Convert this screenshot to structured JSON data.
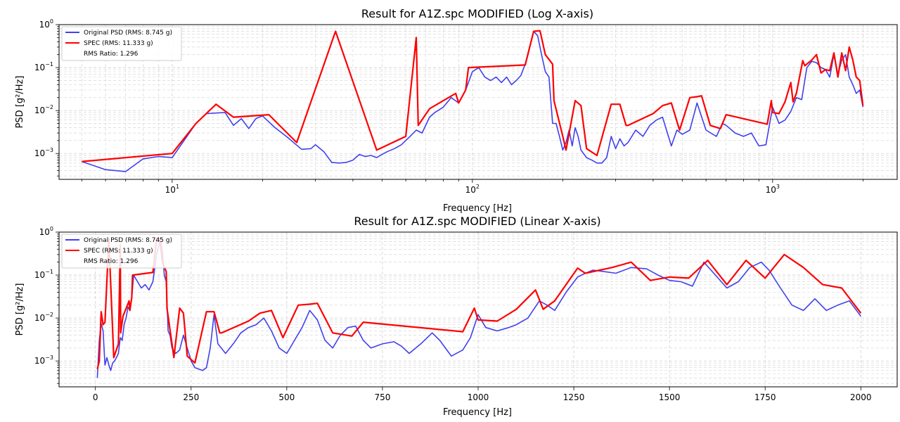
{
  "colors": {
    "original": "#4040ee",
    "spec": "#ff0000",
    "grid": "#d0d0d0",
    "axis": "#000000"
  },
  "chart_data": [
    {
      "type": "line",
      "title": "Result for A1Z.spc MODIFIED (Log X-axis)",
      "xlabel": "Frequency [Hz]",
      "ylabel": "PSD [g²/Hz]",
      "xscale": "log",
      "yscale": "log",
      "xlim": [
        4.2,
        2600
      ],
      "ylim": [
        0.00025,
        1.0
      ],
      "xticks": [
        {
          "value": 10,
          "base": "10",
          "exp": "1"
        },
        {
          "value": 100,
          "base": "10",
          "exp": "2"
        },
        {
          "value": 1000,
          "base": "10",
          "exp": "3"
        }
      ],
      "yticks": [
        {
          "value": 0.001,
          "base": "10",
          "exp": "−3"
        },
        {
          "value": 0.01,
          "base": "10",
          "exp": "−2"
        },
        {
          "value": 0.1,
          "base": "10",
          "exp": "−1"
        },
        {
          "value": 1,
          "base": "10",
          "exp": "0"
        }
      ],
      "grid": true,
      "legend_position": "top-left",
      "legend": [
        "Original PSD (RMS: 8.745 g)",
        "SPEC (RMS: 11.333 g)",
        "RMS Ratio: 1.296"
      ],
      "series": [
        {
          "name": "Original PSD (RMS: 8.745 g)",
          "x": [
            5,
            6,
            7,
            8,
            9,
            10,
            12,
            13,
            15,
            16,
            17,
            18,
            19,
            20,
            22,
            24,
            27,
            29,
            30,
            32,
            34,
            36,
            38,
            40,
            42,
            44,
            46,
            48,
            50,
            52,
            55,
            58,
            62,
            65,
            68,
            72,
            75,
            80,
            85,
            90,
            95,
            100,
            105,
            110,
            115,
            120,
            125,
            130,
            135,
            140,
            145,
            150,
            155,
            160,
            165,
            170,
            175,
            180,
            185,
            190,
            195,
            200,
            205,
            210,
            215,
            220,
            225,
            230,
            240,
            250,
            260,
            270,
            280,
            290,
            300,
            310,
            320,
            330,
            350,
            370,
            390,
            410,
            430,
            460,
            480,
            500,
            530,
            560,
            600,
            650,
            680,
            700,
            750,
            800,
            850,
            900,
            950,
            1000,
            1050,
            1100,
            1150,
            1200,
            1250,
            1300,
            1350,
            1400,
            1450,
            1500,
            1550,
            1600,
            1650,
            1700,
            1750,
            1800,
            1850,
            1900,
            1950,
            2000
          ],
          "y": [
            0.00065,
            0.00042,
            0.00038,
            0.00075,
            0.00085,
            0.0008,
            0.005,
            0.0085,
            0.009,
            0.0045,
            0.0065,
            0.0038,
            0.0065,
            0.0075,
            0.004,
            0.0025,
            0.00125,
            0.0013,
            0.0016,
            0.0011,
            0.00062,
            0.0006,
            0.00062,
            0.0007,
            0.00095,
            0.00085,
            0.0009,
            0.0008,
            0.00095,
            0.0011,
            0.0013,
            0.0016,
            0.0025,
            0.0035,
            0.003,
            0.007,
            0.009,
            0.012,
            0.02,
            0.015,
            0.03,
            0.08,
            0.1,
            0.06,
            0.05,
            0.06,
            0.045,
            0.06,
            0.04,
            0.05,
            0.065,
            0.12,
            0.3,
            0.7,
            0.55,
            0.2,
            0.08,
            0.06,
            0.005,
            0.005,
            0.0025,
            0.0012,
            0.0018,
            0.0035,
            0.0015,
            0.004,
            0.0025,
            0.0012,
            0.0008,
            0.0007,
            0.0006,
            0.0006,
            0.0008,
            0.0025,
            0.0013,
            0.0022,
            0.0015,
            0.0018,
            0.0035,
            0.0025,
            0.0045,
            0.006,
            0.007,
            0.0015,
            0.0035,
            0.0028,
            0.0035,
            0.015,
            0.0035,
            0.0025,
            0.005,
            0.0045,
            0.003,
            0.0025,
            0.003,
            0.0015,
            0.0016,
            0.012,
            0.005,
            0.006,
            0.0095,
            0.02,
            0.018,
            0.1,
            0.14,
            0.13,
            0.1,
            0.09,
            0.06,
            0.2,
            0.07,
            0.15,
            0.2,
            0.06,
            0.04,
            0.025,
            0.03,
            0.012
          ]
        },
        {
          "name": "SPEC (RMS: 11.333 g)",
          "x": [
            5,
            10,
            12,
            14,
            16,
            21,
            26,
            35,
            48,
            60,
            65,
            66,
            72,
            88,
            90,
            95,
            97,
            150,
            160,
            168,
            175,
            185,
            187,
            200,
            205,
            220,
            230,
            240,
            260,
            290,
            310,
            325,
            330,
            400,
            430,
            460,
            490,
            530,
            560,
            580,
            620,
            670,
            700,
            960,
            990,
            1000,
            1050,
            1100,
            1150,
            1170,
            1200,
            1260,
            1280,
            1350,
            1400,
            1450,
            1500,
            1550,
            1600,
            1650,
            1700,
            1750,
            1800,
            1850,
            1900,
            1950,
            2000
          ],
          "y": [
            0.00065,
            0.001,
            0.005,
            0.014,
            0.007,
            0.008,
            0.0018,
            0.7,
            0.0012,
            0.0025,
            0.5,
            0.0045,
            0.011,
            0.025,
            0.015,
            0.03,
            0.1,
            0.115,
            0.7,
            0.72,
            0.2,
            0.12,
            0.017,
            0.0025,
            0.0012,
            0.017,
            0.013,
            0.0013,
            0.0009,
            0.014,
            0.014,
            0.0045,
            0.0045,
            0.0085,
            0.013,
            0.015,
            0.0035,
            0.02,
            0.021,
            0.022,
            0.0045,
            0.0038,
            0.008,
            0.0048,
            0.017,
            0.009,
            0.0085,
            0.016,
            0.045,
            0.016,
            0.025,
            0.145,
            0.11,
            0.15,
            0.2,
            0.075,
            0.09,
            0.085,
            0.22,
            0.06,
            0.22,
            0.085,
            0.3,
            0.15,
            0.06,
            0.05,
            0.013
          ]
        }
      ]
    },
    {
      "type": "line",
      "title": "Result for A1Z.spc MODIFIED (Linear X-axis)",
      "xlabel": "Frequency [Hz]",
      "ylabel": "PSD [g²/Hz]",
      "xscale": "linear",
      "yscale": "log",
      "xlim": [
        -95,
        2095
      ],
      "ylim": [
        0.00025,
        1.0
      ],
      "xticks": [
        {
          "value": 0,
          "label": "0"
        },
        {
          "value": 250,
          "label": "250"
        },
        {
          "value": 500,
          "label": "500"
        },
        {
          "value": 750,
          "label": "750"
        },
        {
          "value": 1000,
          "label": "1000"
        },
        {
          "value": 1250,
          "label": "1250"
        },
        {
          "value": 1500,
          "label": "1500"
        },
        {
          "value": 1750,
          "label": "1750"
        },
        {
          "value": 2000,
          "label": "2000"
        }
      ],
      "yticks": [
        {
          "value": 0.001,
          "base": "10",
          "exp": "−3"
        },
        {
          "value": 0.01,
          "base": "10",
          "exp": "−2"
        },
        {
          "value": 0.1,
          "base": "10",
          "exp": "−1"
        },
        {
          "value": 1,
          "base": "10",
          "exp": "0"
        }
      ],
      "grid": true,
      "legend_position": "top-left",
      "legend": [
        "Original PSD (RMS: 8.745 g)",
        "SPEC (RMS: 11.333 g)",
        "RMS Ratio: 1.296"
      ],
      "series": [
        {
          "name": "Original PSD (RMS: 8.745 g)",
          "x": [
            5,
            10,
            15,
            20,
            25,
            30,
            35,
            40,
            45,
            50,
            55,
            60,
            65,
            70,
            75,
            80,
            85,
            90,
            95,
            100,
            110,
            120,
            130,
            140,
            150,
            160,
            170,
            175,
            180,
            185,
            190,
            195,
            200,
            210,
            220,
            230,
            240,
            250,
            260,
            270,
            280,
            290,
            300,
            310,
            320,
            340,
            360,
            380,
            400,
            420,
            440,
            460,
            480,
            500,
            520,
            540,
            560,
            580,
            600,
            620,
            640,
            660,
            680,
            700,
            720,
            750,
            780,
            800,
            820,
            850,
            880,
            900,
            930,
            960,
            980,
            1000,
            1020,
            1050,
            1080,
            1100,
            1130,
            1160,
            1180,
            1200,
            1230,
            1260,
            1280,
            1300,
            1330,
            1360,
            1400,
            1440,
            1470,
            1500,
            1530,
            1560,
            1590,
            1620,
            1650,
            1680,
            1710,
            1740,
            1760,
            1790,
            1820,
            1850,
            1880,
            1910,
            1940,
            1970,
            2000
          ],
          "y": [
            0.0004,
            0.003,
            0.0075,
            0.005,
            0.0008,
            0.0012,
            0.0008,
            0.0006,
            0.0009,
            0.001,
            0.0012,
            0.0015,
            0.0035,
            0.003,
            0.007,
            0.01,
            0.018,
            0.015,
            0.03,
            0.1,
            0.07,
            0.05,
            0.06,
            0.045,
            0.07,
            0.3,
            0.7,
            0.35,
            0.1,
            0.07,
            0.005,
            0.004,
            0.002,
            0.0015,
            0.0018,
            0.004,
            0.002,
            0.001,
            0.0007,
            0.00065,
            0.0006,
            0.0007,
            0.002,
            0.012,
            0.0025,
            0.0015,
            0.0025,
            0.0045,
            0.006,
            0.007,
            0.01,
            0.005,
            0.002,
            0.0015,
            0.003,
            0.006,
            0.015,
            0.009,
            0.003,
            0.002,
            0.004,
            0.006,
            0.0065,
            0.003,
            0.002,
            0.0025,
            0.0028,
            0.0022,
            0.0015,
            0.0025,
            0.0045,
            0.003,
            0.0013,
            0.0018,
            0.0035,
            0.012,
            0.006,
            0.005,
            0.006,
            0.007,
            0.01,
            0.025,
            0.02,
            0.015,
            0.04,
            0.09,
            0.11,
            0.13,
            0.12,
            0.11,
            0.15,
            0.14,
            0.1,
            0.075,
            0.07,
            0.055,
            0.2,
            0.1,
            0.05,
            0.07,
            0.15,
            0.2,
            0.13,
            0.05,
            0.02,
            0.015,
            0.028,
            0.015,
            0.02,
            0.025,
            0.011
          ]
        },
        {
          "name": "SPEC (RMS: 11.333 g)",
          "x": [
            5,
            10,
            15,
            20,
            25,
            35,
            48,
            60,
            65,
            66,
            72,
            88,
            90,
            95,
            97,
            150,
            160,
            168,
            175,
            185,
            187,
            200,
            205,
            220,
            230,
            240,
            260,
            290,
            310,
            325,
            330,
            400,
            430,
            460,
            490,
            530,
            560,
            580,
            620,
            670,
            700,
            960,
            990,
            1000,
            1050,
            1100,
            1150,
            1170,
            1200,
            1260,
            1280,
            1350,
            1400,
            1450,
            1500,
            1550,
            1600,
            1650,
            1700,
            1750,
            1800,
            1850,
            1900,
            1950,
            2000
          ],
          "y": [
            0.00065,
            0.001,
            0.014,
            0.007,
            0.008,
            0.7,
            0.0012,
            0.0025,
            0.5,
            0.0045,
            0.011,
            0.025,
            0.015,
            0.03,
            0.1,
            0.115,
            0.7,
            0.72,
            0.2,
            0.12,
            0.017,
            0.0025,
            0.0012,
            0.017,
            0.013,
            0.0013,
            0.0009,
            0.014,
            0.014,
            0.0045,
            0.0045,
            0.0085,
            0.013,
            0.015,
            0.0035,
            0.02,
            0.021,
            0.022,
            0.0045,
            0.0038,
            0.008,
            0.0048,
            0.017,
            0.009,
            0.0085,
            0.016,
            0.045,
            0.016,
            0.025,
            0.145,
            0.11,
            0.15,
            0.2,
            0.075,
            0.09,
            0.085,
            0.22,
            0.06,
            0.22,
            0.085,
            0.3,
            0.15,
            0.06,
            0.05,
            0.013
          ]
        }
      ]
    }
  ]
}
